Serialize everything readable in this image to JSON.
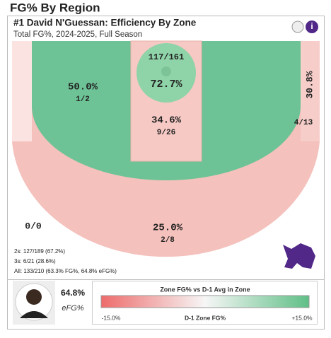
{
  "page_title": "FG% By Region",
  "card": {
    "title": "#1 David N'Guessan: Efficiency By Zone",
    "subtitle": "Total FG%, 2024-2025, Full Season"
  },
  "zones": [
    {
      "pct": "72.7%",
      "shots": "117/161"
    },
    {
      "pct": "50.0%",
      "shots": "1/2"
    },
    {
      "pct": "34.6%",
      "shots": "9/26"
    },
    {
      "pct": "30.8%",
      "shots": "4/13"
    },
    {
      "pct": "25.0%",
      "shots": "2/8"
    },
    {
      "shots": "0/0"
    }
  ],
  "stats": [
    "2s: 127/189 (67.2%)",
    "3s: 6/21 (28.6%)",
    "All: 133/210 (63.3% FG%, 64.8% eFG%)"
  ],
  "player": {
    "value": "64.8%",
    "label": "eFG%"
  },
  "legend": {
    "title": "Zone FG% vs D-1 Avg in Zone",
    "min": "-15.0%",
    "mid": "D-1 Zone FG%",
    "max": "+15.0%"
  }
}
